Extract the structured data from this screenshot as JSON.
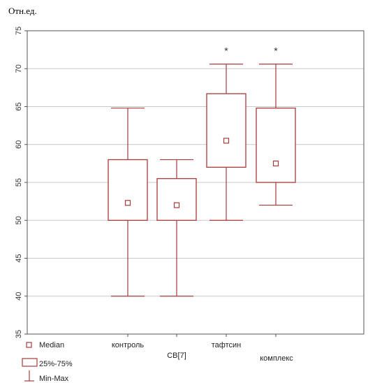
{
  "chart_data": {
    "type": "boxplot",
    "ylabel": "Отн.ед.",
    "ylim": [
      35,
      75
    ],
    "yticks": [
      35,
      40,
      45,
      50,
      55,
      60,
      65,
      70,
      75
    ],
    "grid": true,
    "categories": [
      "контроль",
      "СВ[7]",
      "тафтсин",
      "комплекс"
    ],
    "boxes": [
      {
        "category": "контроль",
        "min": 40,
        "q1": 50,
        "median": 52.3,
        "q3": 58,
        "max": 64.8,
        "annotation": ""
      },
      {
        "category": "СВ[7]",
        "min": 40,
        "q1": 50,
        "median": 52,
        "q3": 55.5,
        "max": 58,
        "annotation": ""
      },
      {
        "category": "тафтсин",
        "min": 50,
        "q1": 57,
        "median": 60.5,
        "q3": 66.7,
        "max": 70.6,
        "annotation": "*"
      },
      {
        "category": "комплекс",
        "min": 52,
        "q1": 55,
        "median": 57.5,
        "q3": 64.8,
        "max": 70.6,
        "annotation": "*"
      }
    ],
    "legend": {
      "position": "bottom-left",
      "entries": [
        "Median",
        "25%-75%",
        "Min-Max"
      ]
    },
    "colors": {
      "box": "#a83a3a",
      "grid": "#c8c8c8",
      "frame": "#555555"
    }
  }
}
